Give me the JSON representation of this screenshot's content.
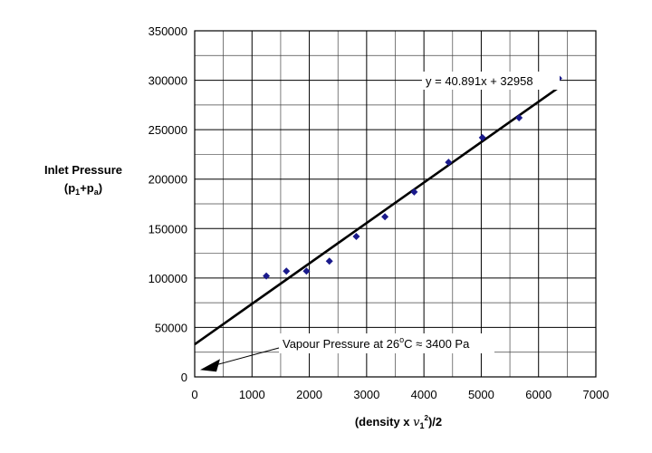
{
  "chart_data": {
    "type": "scatter",
    "ylabel_line1": "Inlet Pressure",
    "ylabel_line2_prefix": "(p",
    "ylabel_line2_sub1": "1",
    "ylabel_line2_mid": "+p",
    "ylabel_line2_sub2": "a",
    "ylabel_line2_suffix": ")",
    "xlabel_prefix": "(density x ",
    "xlabel_var": "v",
    "xlabel_sub": "1",
    "xlabel_sup": "2",
    "xlabel_suffix": ")/2",
    "xlim": [
      0,
      7000
    ],
    "ylim": [
      0,
      350000
    ],
    "x_ticks": [
      "0",
      "1000",
      "2000",
      "3000",
      "4000",
      "5000",
      "6000",
      "7000"
    ],
    "y_ticks": [
      "0",
      "50000",
      "100000",
      "150000",
      "200000",
      "250000",
      "300000",
      "350000"
    ],
    "grid": true,
    "series": [
      {
        "color": "#1a1a8c",
        "x": [
          1250,
          1600,
          1950,
          2350,
          2820,
          3320,
          3830,
          4430,
          5020,
          5660,
          6350
        ],
        "y": [
          102000,
          107000,
          107000,
          117000,
          142000,
          162000,
          187000,
          217000,
          242000,
          262000,
          302000
        ]
      }
    ],
    "trendline": {
      "slope": 40.891,
      "intercept": 32958,
      "x_range": [
        0,
        6350
      ],
      "color": "#000000",
      "label": "y = 40.891x + 32958"
    },
    "annotation": {
      "text_prefix": "Vapour Pressure at 26",
      "text_deg": "o",
      "text_suffix": "C ≈ 3400 Pa",
      "point": [
        0,
        3400
      ]
    }
  }
}
